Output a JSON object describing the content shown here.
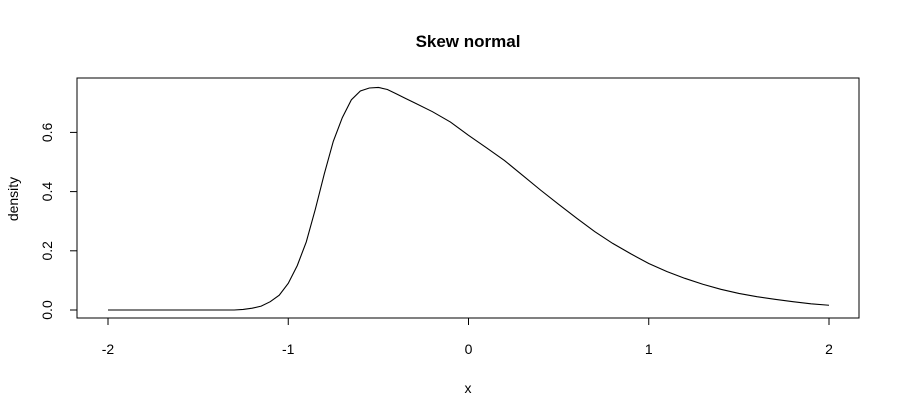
{
  "chart_data": {
    "type": "line",
    "title": "Skew normal",
    "xlabel": "x",
    "ylabel": "density",
    "xlim": [
      -2,
      2
    ],
    "ylim": [
      0,
      0.75
    ],
    "grid": false,
    "legend": "none",
    "x_ticks": [
      -2,
      -1,
      0,
      1,
      2
    ],
    "x_tick_labels": [
      "-2",
      "-1",
      "0",
      "1",
      "2"
    ],
    "y_ticks": [
      0.0,
      0.2,
      0.4,
      0.6
    ],
    "y_tick_labels": [
      "0.0",
      "0.2",
      "0.4",
      "0.6"
    ],
    "colors": {
      "line": "#000000",
      "background": "#ffffff"
    },
    "series": [
      {
        "x": [
          -2.0,
          -1.8,
          -1.6,
          -1.5,
          -1.4,
          -1.3,
          -1.25,
          -1.2,
          -1.15,
          -1.1,
          -1.05,
          -1.0,
          -0.95,
          -0.9,
          -0.85,
          -0.8,
          -0.75,
          -0.7,
          -0.65,
          -0.6,
          -0.55,
          -0.5,
          -0.45,
          -0.4,
          -0.35,
          -0.3,
          -0.2,
          -0.1,
          0.0,
          0.1,
          0.2,
          0.3,
          0.4,
          0.5,
          0.6,
          0.7,
          0.8,
          0.9,
          1.0,
          1.1,
          1.2,
          1.3,
          1.4,
          1.5,
          1.6,
          1.7,
          1.8,
          1.9,
          2.0
        ],
        "values": [
          0.0,
          0.0,
          0.0,
          0.0,
          0.0,
          0.0,
          0.002,
          0.006,
          0.013,
          0.028,
          0.05,
          0.09,
          0.15,
          0.23,
          0.34,
          0.46,
          0.57,
          0.65,
          0.71,
          0.74,
          0.75,
          0.752,
          0.745,
          0.73,
          0.715,
          0.7,
          0.67,
          0.635,
          0.59,
          0.548,
          0.505,
          0.455,
          0.405,
          0.357,
          0.31,
          0.265,
          0.225,
          0.19,
          0.157,
          0.13,
          0.107,
          0.087,
          0.07,
          0.056,
          0.045,
          0.036,
          0.028,
          0.021,
          0.016
        ]
      }
    ]
  }
}
